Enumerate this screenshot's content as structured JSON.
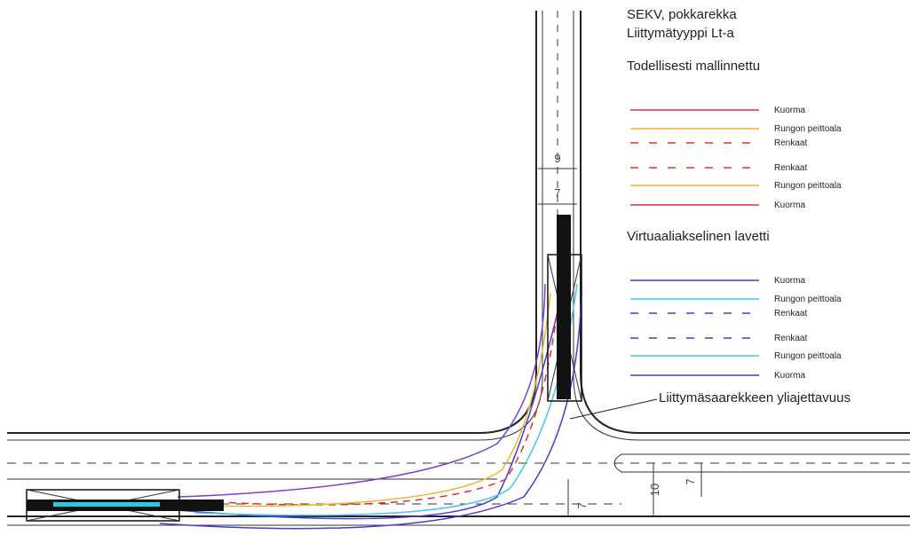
{
  "title_lines": [
    "SEKV, pokkarekka",
    "Liittymätyyppi Lt-a"
  ],
  "legend_groups": [
    {
      "heading": "Todellisesti mallinnettu",
      "items": [
        {
          "label": "Kuorma",
          "color": "#e03030",
          "dashed": false
        },
        {
          "label": "Rungon peittoala",
          "color": "#e8b830",
          "dashed": false
        },
        {
          "label": "Renkaat",
          "color": "#e03030",
          "dashed": true
        },
        {
          "label": "Renkaat",
          "color": "#e03030",
          "dashed": true
        },
        {
          "label": "Rungon peittoala",
          "color": "#e8b830",
          "dashed": false
        },
        {
          "label": "Kuorma",
          "color": "#e03030",
          "dashed": false
        }
      ]
    },
    {
      "heading": "Virtuaaliakselinen lavetti",
      "items": [
        {
          "label": "Kuorma",
          "color": "#4a3ad0",
          "dashed": false
        },
        {
          "label": "Rungon peittoala",
          "color": "#40c8e8",
          "dashed": false
        },
        {
          "label": "Renkaat",
          "color": "#4a3ad0",
          "dashed": true
        },
        {
          "label": "Renkaat",
          "color": "#4a3ad0",
          "dashed": true
        },
        {
          "label": "Rungon peittoala",
          "color": "#40c8e8",
          "dashed": false
        },
        {
          "label": "Kuorma",
          "color": "#4a3ad0",
          "dashed": false
        }
      ]
    }
  ],
  "annotation": "Liittymäsaarekkeen yliajettavuus",
  "dimensions": [
    "9",
    "7",
    "10",
    "7",
    "7"
  ]
}
